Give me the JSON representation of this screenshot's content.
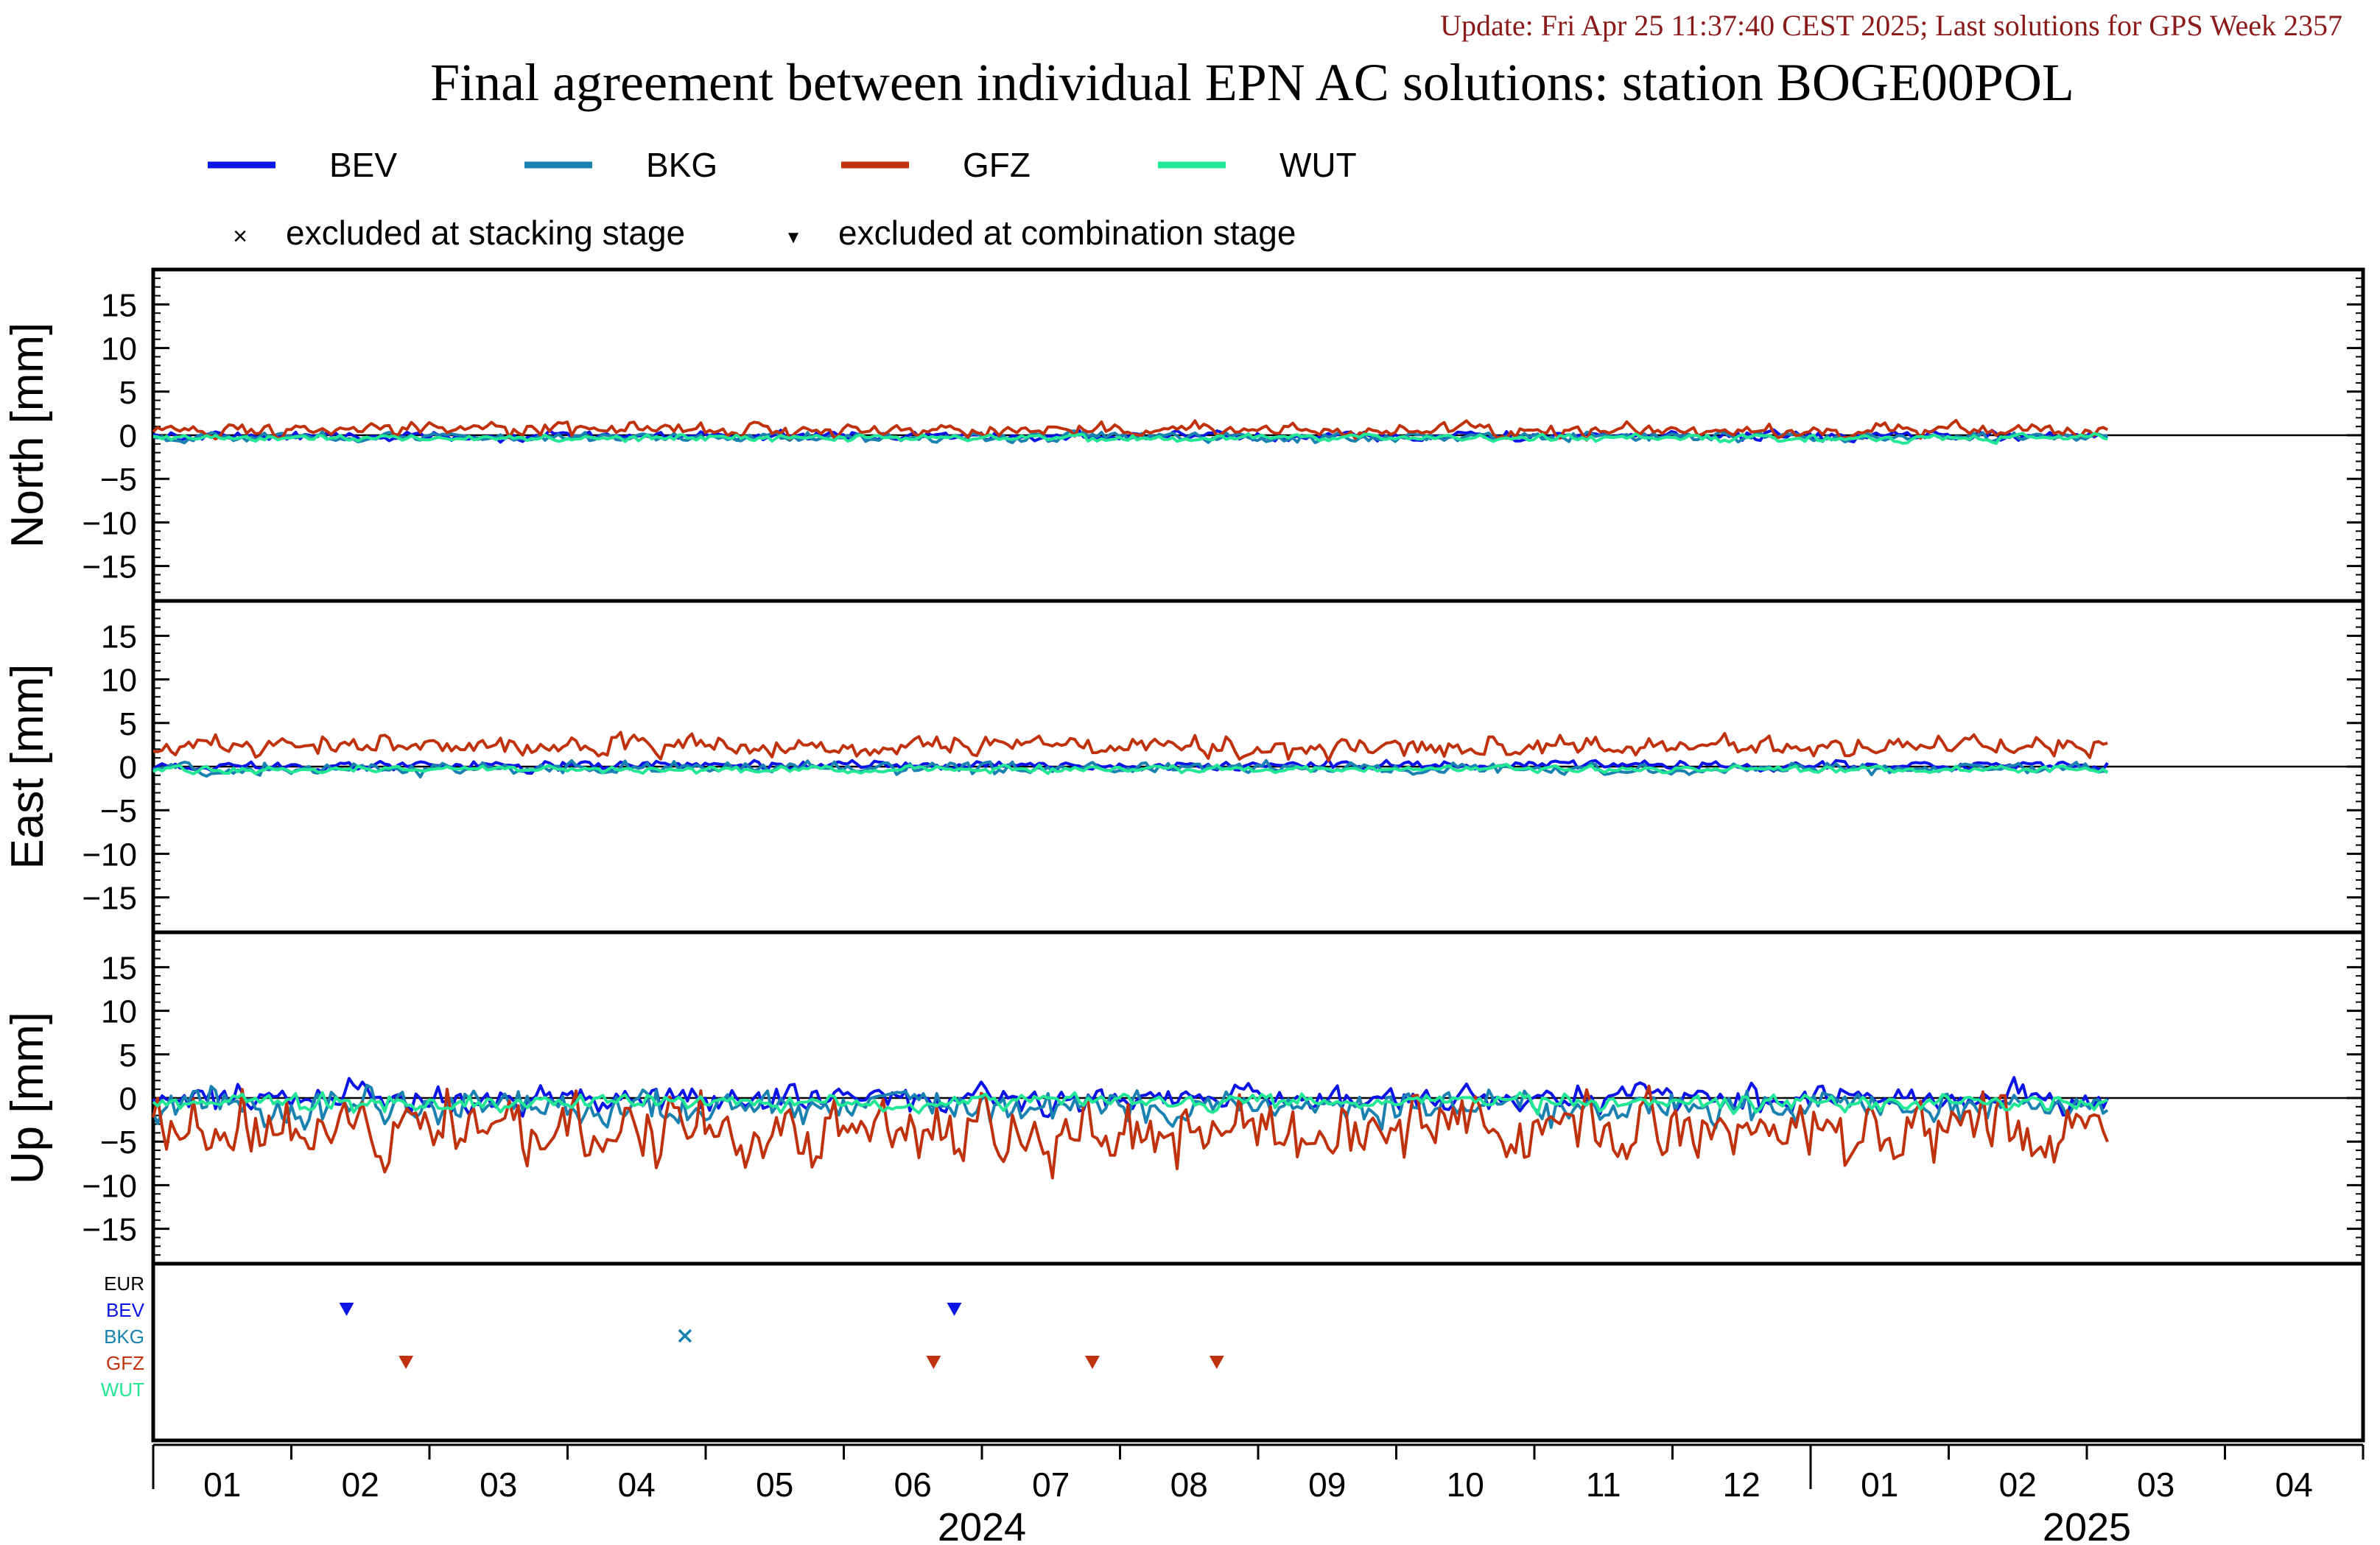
{
  "update_line": "Update: Fri Apr 25 11:37:40 CEST 2025; Last solutions for GPS Week 2357",
  "title": "Final agreement between individual EPN AC solutions: station BOGE00POL",
  "legend": {
    "series": [
      {
        "name": "BEV",
        "color": "#0a14e6"
      },
      {
        "name": "BKG",
        "color": "#1a82b0"
      },
      {
        "name": "GFZ",
        "color": "#c0320e"
      },
      {
        "name": "WUT",
        "color": "#22e896"
      }
    ],
    "markers": [
      {
        "symbol": "×",
        "label": "excluded at stacking stage"
      },
      {
        "symbol": "▼",
        "label": "excluded at combination stage"
      }
    ]
  },
  "chart_data": {
    "type": "line",
    "x_range_months": [
      0,
      16
    ],
    "x_ticks": [
      "01",
      "02",
      "03",
      "04",
      "05",
      "06",
      "07",
      "08",
      "09",
      "10",
      "11",
      "12",
      "01",
      "02",
      "03",
      "04"
    ],
    "years": [
      {
        "label": "2024",
        "center_month": 6.0
      },
      {
        "label": "2025",
        "center_month": 14.0
      }
    ],
    "panels": [
      {
        "ylabel": "North [mm]",
        "ylim": [
          -19,
          19
        ],
        "yticks": [
          15,
          10,
          5,
          0,
          -5,
          -10,
          -15
        ],
        "ytick_labels": [
          "15",
          "10",
          "5",
          "0",
          "−5",
          "−10",
          "−15"
        ],
        "series": [
          {
            "name": "BEV",
            "offset": -0.1,
            "noise": 0.4
          },
          {
            "name": "BKG",
            "offset": -0.2,
            "noise": 0.4
          },
          {
            "name": "GFZ",
            "offset": 0.6,
            "noise": 0.6
          },
          {
            "name": "WUT",
            "offset": -0.3,
            "noise": 0.3
          }
        ]
      },
      {
        "ylabel": "East [mm]",
        "ylim": [
          -19,
          19
        ],
        "yticks": [
          15,
          10,
          5,
          0,
          -5,
          -10,
          -15
        ],
        "ytick_labels": [
          "15",
          "10",
          "5",
          "0",
          "−5",
          "−10",
          "−15"
        ],
        "series": [
          {
            "name": "BEV",
            "offset": 0.1,
            "noise": 0.4
          },
          {
            "name": "BKG",
            "offset": -0.2,
            "noise": 0.5
          },
          {
            "name": "GFZ",
            "offset": 2.3,
            "noise": 0.9
          },
          {
            "name": "WUT",
            "offset": -0.3,
            "noise": 0.3
          }
        ]
      },
      {
        "ylabel": "Up [mm]",
        "ylim": [
          -19,
          19
        ],
        "yticks": [
          15,
          10,
          5,
          0,
          -5,
          -10,
          -15
        ],
        "ytick_labels": [
          "15",
          "10",
          "5",
          "0",
          "−5",
          "−10",
          "−15"
        ],
        "series": [
          {
            "name": "BEV",
            "offset": 0.0,
            "noise": 1.1
          },
          {
            "name": "BKG",
            "offset": -1.0,
            "noise": 1.5
          },
          {
            "name": "GFZ",
            "offset": -3.5,
            "noise": 2.8
          },
          {
            "name": "WUT",
            "offset": -0.5,
            "noise": 0.7
          }
        ]
      }
    ],
    "exclusions": {
      "rows": [
        {
          "label": "EUR",
          "color": "#000000"
        },
        {
          "label": "BEV",
          "color": "#0a14e6"
        },
        {
          "label": "BKG",
          "color": "#1a82b0"
        },
        {
          "label": "GFZ",
          "color": "#c0320e"
        },
        {
          "label": "WUT",
          "color": "#22e896"
        }
      ],
      "points": [
        {
          "row": "BEV",
          "month": 1.4,
          "symbol": "triangle"
        },
        {
          "row": "BEV",
          "month": 5.8,
          "symbol": "triangle"
        },
        {
          "row": "BKG",
          "month": 3.85,
          "symbol": "cross"
        },
        {
          "row": "GFZ",
          "month": 1.83,
          "symbol": "triangle"
        },
        {
          "row": "GFZ",
          "month": 5.65,
          "symbol": "triangle"
        },
        {
          "row": "GFZ",
          "month": 6.8,
          "symbol": "triangle"
        },
        {
          "row": "GFZ",
          "month": 7.7,
          "symbol": "triangle"
        }
      ]
    }
  }
}
